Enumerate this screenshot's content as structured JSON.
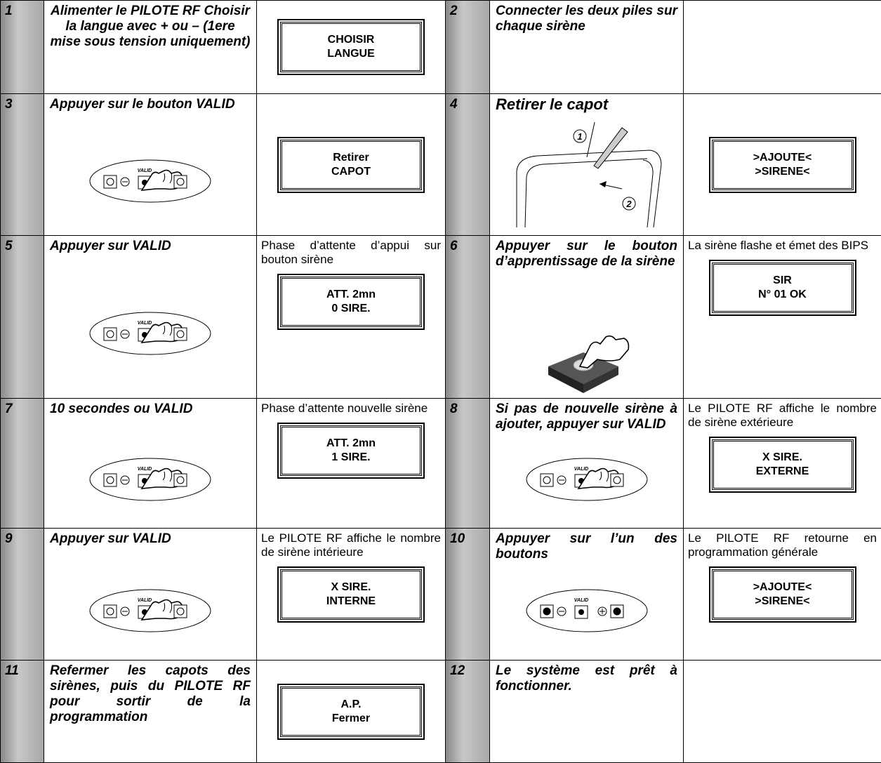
{
  "keypad_label": "VALID",
  "capot_callouts": [
    "1",
    "2"
  ],
  "steps": [
    {
      "num": "1",
      "text": "Alimenter le PILOTE RF Choisir la langue avec + ou – (1ere mise sous tension uniquement)",
      "display": [
        "CHOISIR",
        "LANGUE"
      ]
    },
    {
      "num": "2",
      "text": "Connecter les deux piles sur chaque sirène"
    },
    {
      "num": "3",
      "text": "Appuyer sur le bouton VALID",
      "display": [
        "Retirer",
        "CAPOT"
      ]
    },
    {
      "num": "4",
      "text": "Retirer le capot",
      "display": [
        ">AJOUTE<",
        ">SIRENE<"
      ]
    },
    {
      "num": "5",
      "text": "Appuyer sur VALID",
      "note": "Phase d’attente d’appui sur bouton sirène",
      "display": [
        "ATT. 2mn",
        "0 SIRE."
      ]
    },
    {
      "num": "6",
      "text": "Appuyer sur le bouton d’apprentissage de la sirène",
      "note": "La sirène flashe et émet des BIPS",
      "display": [
        "SIR",
        "N° 01  OK"
      ]
    },
    {
      "num": "7",
      "text": "10 secondes ou VALID",
      "note": "Phase d’attente nouvelle sirène",
      "display": [
        "ATT. 2mn",
        "1 SIRE."
      ]
    },
    {
      "num": "8",
      "text": "Si pas de nouvelle sirène à ajouter, appuyer sur VALID",
      "note": "Le PILOTE RF affiche le nombre de sirène extérieure",
      "display": [
        "X SIRE.",
        "EXTERNE"
      ]
    },
    {
      "num": "9",
      "text": "Appuyer sur VALID",
      "note": "Le PILOTE RF affiche le nombre de sirène intérieure",
      "display": [
        "X SIRE.",
        "INTERNE"
      ]
    },
    {
      "num": "10",
      "text": "Appuyer sur l’un des boutons",
      "note": "Le PILOTE RF retourne en programmation générale",
      "display": [
        ">AJOUTE<",
        ">SIRENE<"
      ]
    },
    {
      "num": "11",
      "text": "Refermer les capots des sirènes, puis du PILOTE RF pour sortir de la programmation",
      "display": [
        "A.P.",
        "Fermer"
      ]
    },
    {
      "num": "12",
      "text": "Le système est prêt à fonctionner."
    }
  ]
}
